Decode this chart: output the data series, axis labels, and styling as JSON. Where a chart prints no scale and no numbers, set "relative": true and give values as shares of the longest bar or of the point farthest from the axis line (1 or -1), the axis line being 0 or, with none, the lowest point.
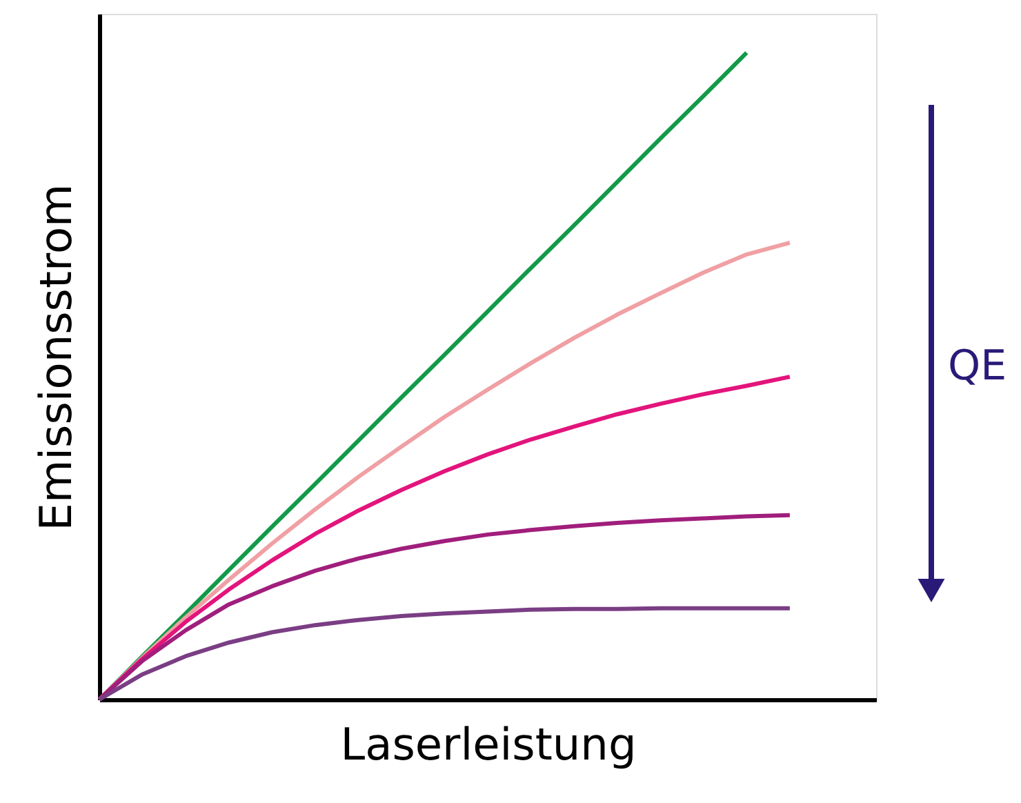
{
  "chart_data": {
    "type": "line",
    "relative": true,
    "xlabel": "Laserleistung",
    "ylabel": "Emissionsstrom",
    "categories": [
      null,
      null,
      null,
      null,
      null,
      null,
      null,
      null,
      null,
      null,
      null,
      null,
      null,
      null,
      null,
      null,
      null
    ],
    "series": [
      {
        "color": "#129a48",
        "values": [
          0,
          0.067,
          0.133,
          0.2,
          0.267,
          0.333,
          0.4,
          0.467,
          0.533,
          0.6,
          0.667,
          0.733,
          0.8,
          0.867,
          0.933,
          1.0,
          null
        ]
      },
      {
        "color": "#f0a0a4",
        "values": [
          0,
          0.065,
          0.127,
          0.185,
          0.241,
          0.294,
          0.344,
          0.391,
          0.437,
          0.479,
          0.52,
          0.559,
          0.595,
          0.628,
          0.66,
          0.688,
          0.706
        ]
      },
      {
        "color": "#e3147c",
        "values": [
          0,
          0.063,
          0.12,
          0.17,
          0.215,
          0.256,
          0.292,
          0.324,
          0.353,
          0.379,
          0.402,
          0.422,
          0.441,
          0.457,
          0.472,
          0.485,
          0.499
        ]
      },
      {
        "color": "#a01e7c",
        "values": [
          0,
          0.06,
          0.107,
          0.147,
          0.175,
          0.199,
          0.218,
          0.233,
          0.245,
          0.255,
          0.262,
          0.268,
          0.273,
          0.277,
          0.28,
          0.283,
          0.285
        ]
      },
      {
        "color": "#7a3e84",
        "values": [
          0,
          0.039,
          0.067,
          0.088,
          0.104,
          0.115,
          0.123,
          0.129,
          0.133,
          0.136,
          0.139,
          0.14,
          0.14,
          0.141,
          0.141,
          0.141,
          0.141
        ]
      }
    ],
    "annotations": [
      "QE"
    ],
    "grid": false,
    "tick_labels": false,
    "line_style": "solid",
    "marker": "none"
  }
}
